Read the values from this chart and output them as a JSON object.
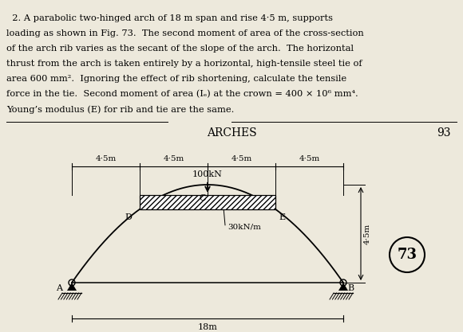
{
  "section_title": "ARCHES",
  "page_number": "93",
  "fig_number": "73",
  "span": 18,
  "rise": 4.5,
  "bg_color": "#ede9dc",
  "dim_labels": [
    "4·5m",
    "4·5m",
    "4·5m",
    "4·5m"
  ],
  "dim_positions": [
    0,
    4.5,
    9,
    13.5,
    18
  ],
  "point_load_label": "100kN",
  "udl_label": "30kN/m",
  "rise_label": "4·5m",
  "span_label": "18m",
  "text_line1": "  2. A parabolic two-hinged arch of 18 m span and rise 4·5 m, supports",
  "text_line2": "loading as shown in Fig. 73.  The second moment of area of the cross-section",
  "text_line3": "of the arch rib varies as the secant of the slope of the arch.  The horizontal",
  "text_line4": "thrust from the arch is taken entirely by a horizontal, high-tensile steel tie of",
  "text_line5": "area 600 mm².  Ignoring the effect of rib shortening, calculate the tensile",
  "text_line6": "force in the tie.  Second moment of area (Iₑ) at the crown = 400 × 10⁶ mm⁴.",
  "text_line7": "Young’s modulus (E) for rib and tie are the same."
}
